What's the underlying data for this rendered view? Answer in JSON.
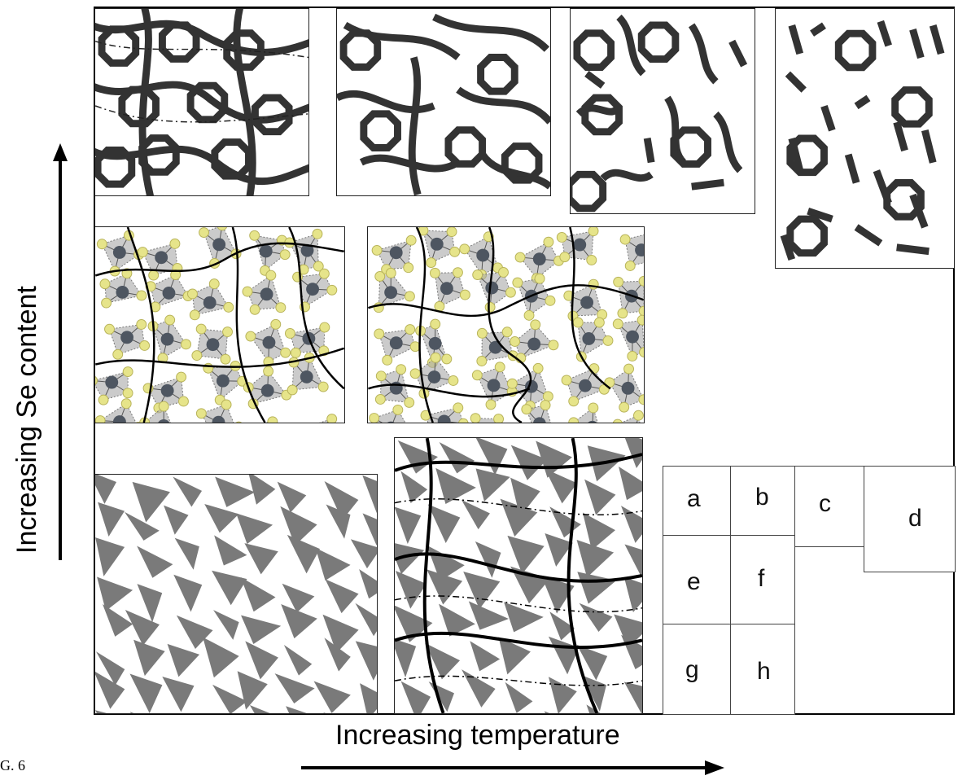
{
  "axes": {
    "y_label": "Increasing Se content",
    "x_label": "Increasing temperature"
  },
  "figure_label": "G. 6",
  "key": {
    "labels": [
      "a",
      "b",
      "c",
      "d",
      "e",
      "f",
      "g",
      "h"
    ]
  },
  "colors": {
    "ring": "#333333",
    "tetrahedra": "#7a7a7a",
    "selenium": "#e6e48a",
    "germanium": "#4e5661",
    "line": "#000000"
  },
  "panels": {
    "a": "rings-and-chains",
    "b": "rings-and-chains",
    "c": "rings-and-chain-fragments",
    "d": "rings-and-short-fragments",
    "e": "atomistic-tetrahedra-network",
    "f": "atomistic-tetrahedra-network",
    "g": "tetrahedra-network",
    "h": "tetrahedra-network-with-chains"
  }
}
